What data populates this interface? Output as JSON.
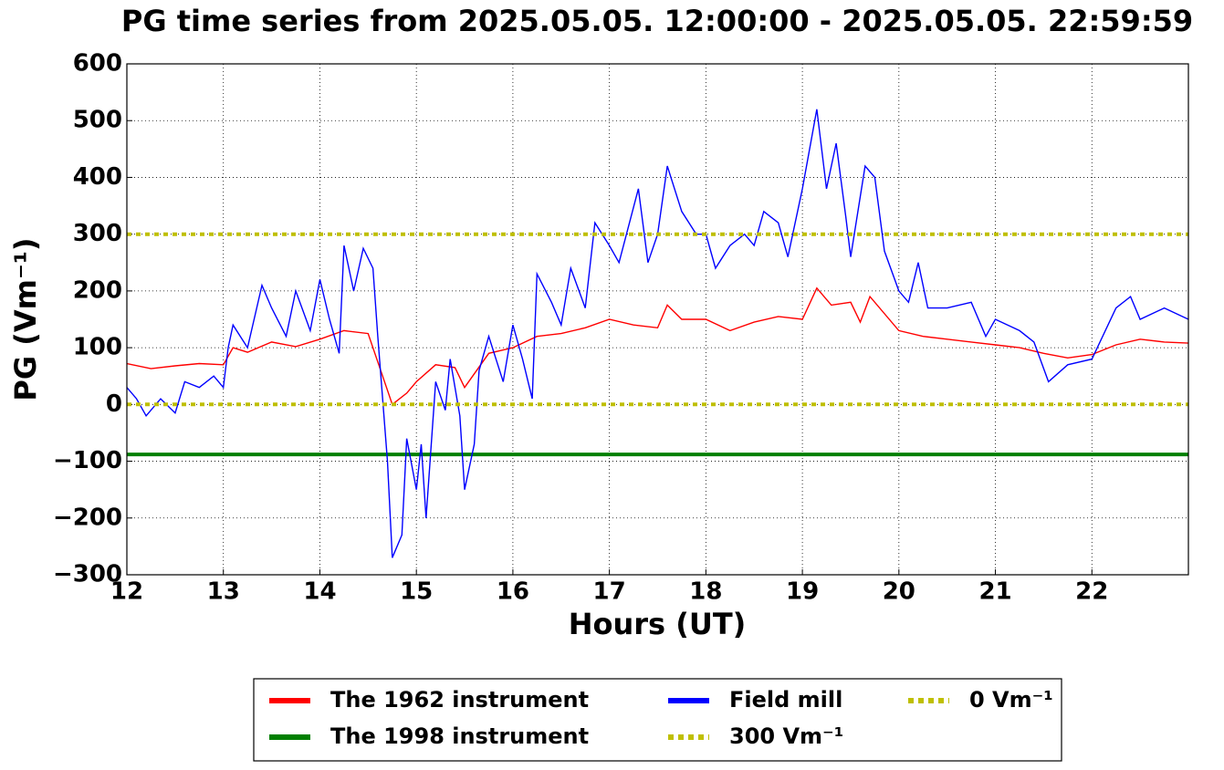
{
  "chart_data": {
    "type": "line",
    "title": "PG time series from 2025.05.05. 12:00:00 - 2025.05.05. 22:59:59",
    "x_label": "Hours (UT)",
    "y_label": "PG (Vm⁻¹)",
    "xlim": [
      12,
      23
    ],
    "xticks": [
      12,
      13,
      14,
      15,
      16,
      17,
      18,
      19,
      20,
      21,
      22
    ],
    "ylim": [
      -300,
      600
    ],
    "yticks": [
      {
        "value": -300,
        "label": "−300"
      },
      {
        "value": -200,
        "label": "−200"
      },
      {
        "value": -100,
        "label": "−100"
      },
      0,
      100,
      200,
      300,
      400,
      500,
      600
    ],
    "grid": true,
    "legend": "bottom",
    "series": [
      {
        "name": "The 1962 instrument",
        "color": "#ff0000",
        "linestyle": "solid",
        "x": [
          12.0,
          12.25,
          12.5,
          12.75,
          13.0,
          13.1,
          13.25,
          13.5,
          13.75,
          14.0,
          14.25,
          14.5,
          14.6,
          14.75,
          14.9,
          15.0,
          15.2,
          15.4,
          15.5,
          15.75,
          16.0,
          16.25,
          16.5,
          16.75,
          17.0,
          17.25,
          17.5,
          17.6,
          17.75,
          18.0,
          18.25,
          18.5,
          18.75,
          19.0,
          19.15,
          19.3,
          19.5,
          19.6,
          19.7,
          20.0,
          20.25,
          20.5,
          20.75,
          21.0,
          21.25,
          21.5,
          21.75,
          22.0,
          22.25,
          22.5,
          22.75,
          23.0
        ],
        "values": [
          72,
          63,
          68,
          72,
          70,
          100,
          92,
          110,
          102,
          115,
          130,
          125,
          75,
          0,
          20,
          40,
          70,
          65,
          30,
          90,
          100,
          120,
          125,
          135,
          150,
          140,
          135,
          175,
          150,
          150,
          130,
          145,
          155,
          150,
          205,
          175,
          180,
          145,
          190,
          130,
          120,
          115,
          110,
          105,
          100,
          90,
          82,
          88,
          105,
          115,
          110,
          108
        ]
      },
      {
        "name": "The 1998 instrument",
        "color": "#008000",
        "linestyle": "solid",
        "x": [
          12,
          23
        ],
        "values": [
          -88,
          -88
        ]
      },
      {
        "name": "Field mill",
        "color": "#0000ff",
        "linestyle": "solid",
        "x": [
          12.0,
          12.1,
          12.2,
          12.35,
          12.5,
          12.6,
          12.75,
          12.9,
          13.0,
          13.05,
          13.1,
          13.25,
          13.4,
          13.5,
          13.65,
          13.75,
          13.9,
          14.0,
          14.1,
          14.2,
          14.25,
          14.35,
          14.45,
          14.55,
          14.6,
          14.7,
          14.75,
          14.85,
          14.9,
          15.0,
          15.05,
          15.1,
          15.2,
          15.3,
          15.35,
          15.45,
          15.5,
          15.6,
          15.65,
          15.75,
          15.9,
          16.0,
          16.1,
          16.2,
          16.25,
          16.4,
          16.5,
          16.6,
          16.75,
          16.85,
          17.0,
          17.1,
          17.3,
          17.4,
          17.5,
          17.6,
          17.75,
          17.9,
          18.0,
          18.1,
          18.25,
          18.4,
          18.5,
          18.6,
          18.75,
          18.85,
          19.0,
          19.15,
          19.25,
          19.35,
          19.45,
          19.5,
          19.65,
          19.75,
          19.85,
          20.0,
          20.1,
          20.2,
          20.3,
          20.5,
          20.75,
          20.9,
          21.0,
          21.25,
          21.4,
          21.55,
          21.75,
          22.0,
          22.25,
          22.4,
          22.5,
          22.75,
          23.0
        ],
        "values": [
          30,
          10,
          -20,
          10,
          -15,
          40,
          30,
          50,
          30,
          100,
          140,
          100,
          210,
          170,
          120,
          200,
          130,
          220,
          150,
          90,
          280,
          200,
          275,
          240,
          120,
          -100,
          -270,
          -230,
          -60,
          -150,
          -70,
          -200,
          40,
          -10,
          80,
          -20,
          -150,
          -70,
          60,
          120,
          40,
          140,
          80,
          10,
          230,
          180,
          140,
          240,
          170,
          320,
          280,
          250,
          380,
          250,
          300,
          420,
          340,
          300,
          300,
          240,
          280,
          300,
          280,
          340,
          320,
          260,
          380,
          520,
          380,
          460,
          330,
          260,
          420,
          400,
          270,
          200,
          180,
          250,
          170,
          170,
          180,
          120,
          150,
          130,
          110,
          40,
          70,
          80,
          170,
          190,
          150,
          170,
          150
        ]
      },
      {
        "name": "300 Vm⁻¹",
        "color": "#bfbf00",
        "linestyle": "dotted",
        "x": [
          12,
          23
        ],
        "values": [
          300,
          300
        ]
      },
      {
        "name": "0 Vm⁻¹",
        "color": "#bfbf00",
        "linestyle": "dotted",
        "x": [
          12,
          23
        ],
        "values": [
          0,
          0
        ]
      }
    ]
  }
}
